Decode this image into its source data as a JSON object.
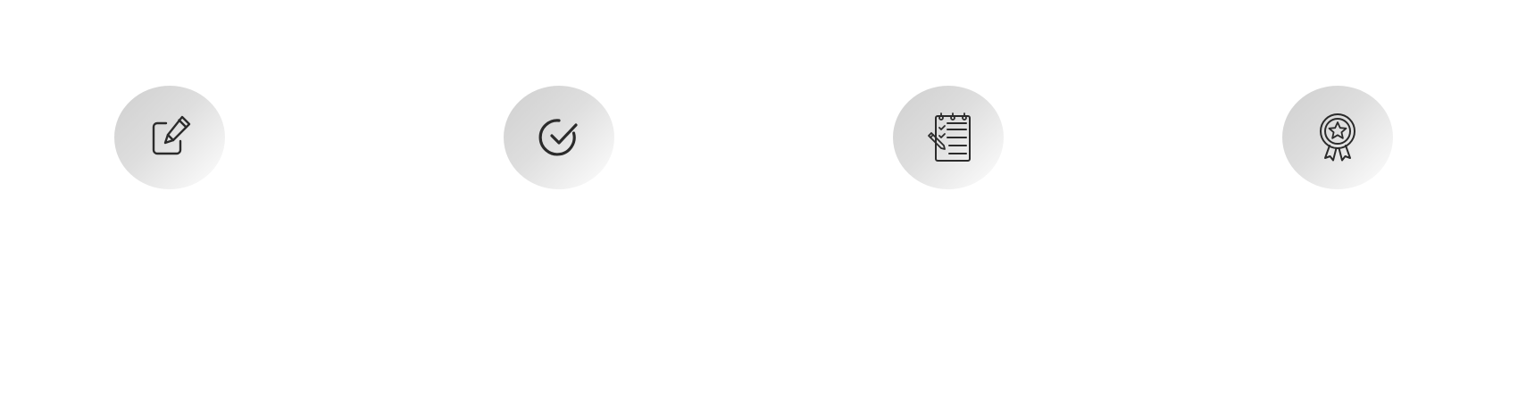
{
  "steps": [
    {
      "icon": "edit-icon"
    },
    {
      "icon": "check-circle-icon"
    },
    {
      "icon": "checklist-notepad-icon"
    },
    {
      "icon": "award-badge-icon"
    }
  ],
  "colors": {
    "circle_gradient_start": "#cfcfcf",
    "circle_gradient_end": "#ffffff",
    "icon_stroke": "#2b2b2b",
    "background": "#ffffff"
  }
}
